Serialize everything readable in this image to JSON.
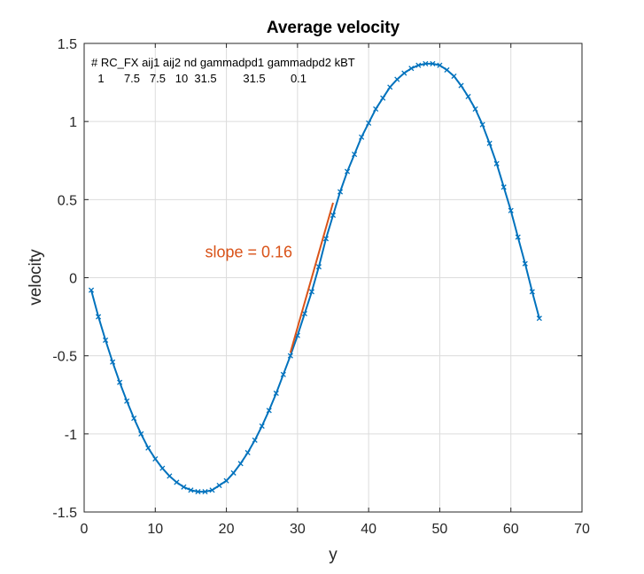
{
  "chart_data": {
    "type": "line",
    "title": "Average velocity",
    "xlabel": "y",
    "ylabel": "velocity",
    "xlim": [
      0,
      70
    ],
    "ylim": [
      -1.5,
      1.5
    ],
    "xticks": [
      0,
      10,
      20,
      30,
      40,
      50,
      60,
      70
    ],
    "yticks": [
      -1.5,
      -1,
      -0.5,
      0,
      0.5,
      1,
      1.5
    ],
    "xtick_labels": [
      "0",
      "10",
      "20",
      "30",
      "40",
      "50",
      "60",
      "70"
    ],
    "ytick_labels": [
      "-1.5",
      "-1",
      "-0.5",
      "0",
      "0.5",
      "1",
      "1.5"
    ],
    "grid": true,
    "series": [
      {
        "marker": "x",
        "color": "#0072BD",
        "x": [
          1,
          2,
          3,
          4,
          5,
          6,
          7,
          8,
          9,
          10,
          11,
          12,
          13,
          14,
          15,
          16,
          17,
          18,
          19,
          20,
          21,
          22,
          23,
          24,
          25,
          26,
          27,
          28,
          29,
          30,
          31,
          32,
          33,
          34,
          35,
          36,
          37,
          38,
          39,
          40,
          41,
          42,
          43,
          44,
          45,
          46,
          47,
          48,
          49,
          50,
          51,
          52,
          53,
          54,
          55,
          56,
          57,
          58,
          59,
          60,
          61,
          62,
          63,
          64
        ],
        "values": [
          -0.08,
          -0.25,
          -0.4,
          -0.54,
          -0.67,
          -0.79,
          -0.9,
          -1.0,
          -1.09,
          -1.16,
          -1.22,
          -1.27,
          -1.31,
          -1.34,
          -1.36,
          -1.37,
          -1.37,
          -1.36,
          -1.33,
          -1.3,
          -1.25,
          -1.19,
          -1.12,
          -1.04,
          -0.95,
          -0.85,
          -0.74,
          -0.62,
          -0.5,
          -0.37,
          -0.23,
          -0.09,
          0.07,
          0.25,
          0.4,
          0.55,
          0.68,
          0.79,
          0.9,
          0.99,
          1.08,
          1.15,
          1.22,
          1.27,
          1.31,
          1.34,
          1.36,
          1.37,
          1.37,
          1.36,
          1.33,
          1.29,
          1.23,
          1.16,
          1.08,
          0.98,
          0.86,
          0.73,
          0.58,
          0.43,
          0.26,
          0.09,
          -0.09,
          -0.26
        ]
      }
    ],
    "slope_line": {
      "color": "#D95319",
      "x": [
        29,
        35
      ],
      "y": [
        -0.48,
        0.48
      ],
      "label": "slope = 0.16",
      "label_x": 17,
      "label_y": 0.13
    },
    "param_header": "# RC_FX aij1 aij2 nd gammadpd1 gammadpd2 kBT",
    "param_values": [
      "1",
      "7.5",
      "7.5",
      "10",
      "31.5",
      "31.5",
      "0.1"
    ]
  }
}
